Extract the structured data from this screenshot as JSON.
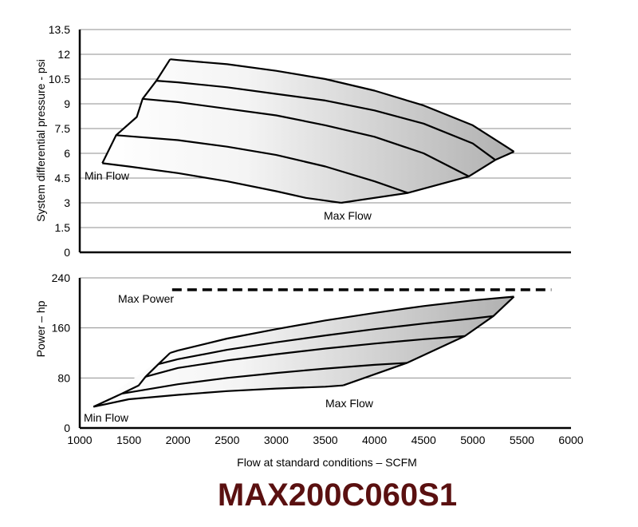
{
  "chart_data": [
    {
      "type": "line",
      "ylabel": "System differential pressure - psi",
      "ylim": [
        0,
        13.5
      ],
      "xlim": [
        1000,
        6000
      ],
      "y_ticks": [
        "13.5",
        "12",
        "10.5",
        "9",
        "7.5",
        "6",
        "4.5",
        "3",
        "1.5",
        "0"
      ],
      "grid": true,
      "annotations": [
        "Min Flow",
        "Max Flow"
      ],
      "envelope": {
        "min_flow": {
          "x": [
            1920,
            1780,
            1640,
            1580,
            1370,
            1230
          ],
          "y": [
            11.7,
            10.4,
            9.3,
            8.2,
            7.1,
            5.4
          ]
        },
        "max_flow": {
          "x": [
            3660,
            4340,
            4960,
            5230,
            5420
          ],
          "y": [
            3.0,
            3.6,
            4.6,
            5.6,
            6.1
          ]
        }
      },
      "series": [
        {
          "x": [
            1230,
            1500,
            2000,
            2500,
            3000,
            3300,
            3660
          ],
          "y": [
            5.4,
            5.2,
            4.8,
            4.3,
            3.7,
            3.3,
            3.0
          ]
        },
        {
          "x": [
            1370,
            2000,
            2500,
            3000,
            3500,
            4000,
            4340
          ],
          "y": [
            7.1,
            6.8,
            6.4,
            5.9,
            5.2,
            4.3,
            3.6
          ]
        },
        {
          "x": [
            1640,
            2000,
            2500,
            3000,
            3500,
            4000,
            4500,
            4960
          ],
          "y": [
            9.3,
            9.1,
            8.7,
            8.3,
            7.7,
            7.0,
            6.0,
            4.6
          ]
        },
        {
          "x": [
            1780,
            2000,
            2500,
            3000,
            3500,
            4000,
            4500,
            5000,
            5230
          ],
          "y": [
            10.4,
            10.3,
            10.0,
            9.6,
            9.2,
            8.6,
            7.8,
            6.6,
            5.6
          ]
        },
        {
          "x": [
            1920,
            2000,
            2500,
            3000,
            3500,
            4000,
            4500,
            5000,
            5420
          ],
          "y": [
            11.7,
            11.65,
            11.4,
            11.0,
            10.5,
            9.8,
            8.9,
            7.7,
            6.1
          ]
        }
      ]
    },
    {
      "type": "line",
      "ylabel": "Power – hp",
      "xlabel": "Flow at standard conditions – SCFM",
      "ylim": [
        0,
        240
      ],
      "xlim": [
        1000,
        6000
      ],
      "x_ticks": [
        "1000",
        "1500",
        "2000",
        "2500",
        "3000",
        "3500",
        "4000",
        "4500",
        "5000",
        "5500",
        "6000"
      ],
      "y_ticks": [
        "240",
        "160",
        "80",
        "0"
      ],
      "grid": true,
      "annotations": [
        "Max Power",
        "Min Flow",
        "Max Flow"
      ],
      "max_power": {
        "y": 221,
        "x_start": 1940,
        "x_end": 5800,
        "label": "Max Power"
      },
      "envelope": {
        "min_flow": {
          "x": [
            1140,
            1430,
            1600,
            1670,
            1800,
            1920
          ],
          "y": [
            34,
            55,
            68,
            82,
            102,
            120
          ]
        },
        "max_flow": {
          "x": [
            3680,
            4330,
            4920,
            5210,
            5420
          ],
          "y": [
            68,
            104,
            147,
            179,
            210
          ]
        }
      },
      "series": [
        {
          "x": [
            1140,
            1500,
            2000,
            2500,
            3000,
            3500,
            3680
          ],
          "y": [
            34,
            46,
            53,
            59,
            63,
            66,
            68
          ]
        },
        {
          "x": [
            1430,
            2000,
            2500,
            3000,
            3500,
            4000,
            4330
          ],
          "y": [
            55,
            70,
            80,
            88,
            95,
            101,
            104
          ]
        },
        {
          "x": [
            1670,
            2000,
            2500,
            3000,
            3500,
            4000,
            4500,
            4920
          ],
          "y": [
            82,
            96,
            108,
            118,
            127,
            135,
            142,
            147
          ]
        },
        {
          "x": [
            1800,
            2000,
            2500,
            3000,
            3500,
            4000,
            4500,
            5000,
            5210
          ],
          "y": [
            102,
            110,
            125,
            137,
            148,
            158,
            167,
            175,
            179
          ]
        },
        {
          "x": [
            1920,
            2000,
            2500,
            3000,
            3500,
            4000,
            4500,
            5000,
            5420
          ],
          "y": [
            120,
            124,
            143,
            158,
            172,
            184,
            195,
            204,
            210
          ]
        }
      ]
    }
  ],
  "model_name": "MAX200C060S1",
  "colors": {
    "title": "#5a1010",
    "grid": "#8f8f8f",
    "fill_light": "#ffffff",
    "fill_dark": "#b4b4b4"
  }
}
